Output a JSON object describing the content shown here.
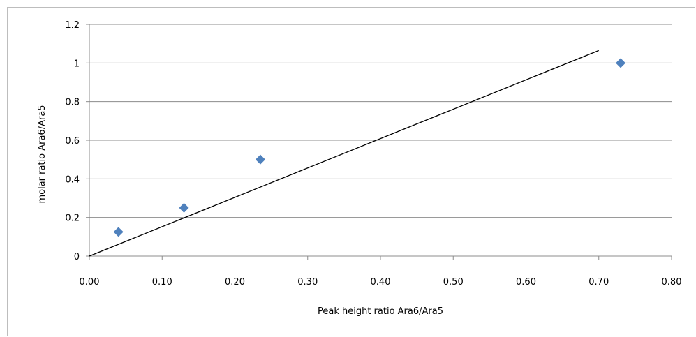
{
  "chart_data": {
    "type": "scatter",
    "xlabel": "Peak height ratio Ara6/Ara5",
    "ylabel": "molar ratio Ara6/Ara5",
    "xlim": [
      0,
      0.8
    ],
    "ylim": [
      0,
      1.2
    ],
    "x_ticks": [
      "0.00",
      "0.10",
      "0.20",
      "0.30",
      "0.40",
      "0.50",
      "0.60",
      "0.70",
      "0.80"
    ],
    "y_ticks": [
      "0",
      "0.2",
      "0.4",
      "0.6",
      "0.8",
      "1",
      "1.2"
    ],
    "grid": "horizontal",
    "series": [
      {
        "x": [
          0.04,
          0.13,
          0.235,
          0.73
        ],
        "y": [
          0.125,
          0.25,
          0.5,
          1.0
        ],
        "marker": "diamond",
        "color": "#4f81bd"
      }
    ],
    "trendline": {
      "x": [
        0,
        0.7
      ],
      "y": [
        0,
        1.065
      ],
      "color": "#000000"
    }
  }
}
